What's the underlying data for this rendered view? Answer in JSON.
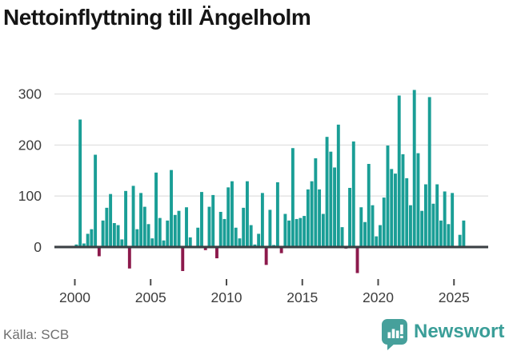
{
  "title": "Nettoinflyttning till Ängelholm",
  "source": "Källa: SCB",
  "branding": {
    "name": "Newsworthy"
  },
  "colors": {
    "positive_bar": "#1a9e96",
    "negative_bar": "#8c1a4c",
    "gridline": "#e2e2e2",
    "zero_line": "#3b4044",
    "tick_mark": "#4a4a4a",
    "tick_text": "#3d3d3d",
    "title_text": "#151515",
    "source_text": "#6f6f6f",
    "brand_teal": "#3a9e98",
    "badge_teal": "#46a09b"
  },
  "chart_data": {
    "type": "bar",
    "title": "Nettoinflyttning till Ängelholm",
    "xlabel": "",
    "ylabel": "",
    "yticks": [
      0,
      100,
      200,
      300
    ],
    "xticks": [
      2000,
      2005,
      2010,
      2015,
      2020,
      2025
    ],
    "ylim": [
      -60,
      320
    ],
    "grid": true,
    "legend": "none",
    "points": [
      [
        "2000Q1",
        5
      ],
      [
        "2000Q2",
        250
      ],
      [
        "2000Q3",
        7
      ],
      [
        "2000Q4",
        26
      ],
      [
        "2001Q1",
        35
      ],
      [
        "2001Q2",
        181
      ],
      [
        "2001Q3",
        -18
      ],
      [
        "2001Q4",
        52
      ],
      [
        "2002Q1",
        77
      ],
      [
        "2002Q2",
        104
      ],
      [
        "2002Q3",
        47
      ],
      [
        "2002Q4",
        43
      ],
      [
        "2003Q1",
        15
      ],
      [
        "2003Q2",
        110
      ],
      [
        "2003Q3",
        -42
      ],
      [
        "2003Q4",
        120
      ],
      [
        "2004Q1",
        35
      ],
      [
        "2004Q2",
        106
      ],
      [
        "2004Q3",
        79
      ],
      [
        "2004Q4",
        45
      ],
      [
        "2005Q1",
        17
      ],
      [
        "2005Q2",
        146
      ],
      [
        "2005Q3",
        57
      ],
      [
        "2005Q4",
        13
      ],
      [
        "2006Q1",
        52
      ],
      [
        "2006Q2",
        151
      ],
      [
        "2006Q3",
        63
      ],
      [
        "2006Q4",
        71
      ],
      [
        "2007Q1",
        -47
      ],
      [
        "2007Q2",
        78
      ],
      [
        "2007Q3",
        19
      ],
      [
        "2007Q4",
        0
      ],
      [
        "2008Q1",
        38
      ],
      [
        "2008Q2",
        108
      ],
      [
        "2008Q3",
        -6
      ],
      [
        "2008Q4",
        79
      ],
      [
        "2009Q1",
        102
      ],
      [
        "2009Q2",
        -22
      ],
      [
        "2009Q3",
        69
      ],
      [
        "2009Q4",
        55
      ],
      [
        "2010Q1",
        117
      ],
      [
        "2010Q2",
        129
      ],
      [
        "2010Q3",
        38
      ],
      [
        "2010Q4",
        17
      ],
      [
        "2011Q1",
        77
      ],
      [
        "2011Q2",
        129
      ],
      [
        "2011Q3",
        43
      ],
      [
        "2011Q4",
        5
      ],
      [
        "2012Q1",
        26
      ],
      [
        "2012Q2",
        106
      ],
      [
        "2012Q3",
        -35
      ],
      [
        "2012Q4",
        73
      ],
      [
        "2013Q1",
        4
      ],
      [
        "2013Q2",
        127
      ],
      [
        "2013Q3",
        -12
      ],
      [
        "2013Q4",
        65
      ],
      [
        "2014Q1",
        52
      ],
      [
        "2014Q2",
        194
      ],
      [
        "2014Q3",
        55
      ],
      [
        "2014Q4",
        57
      ],
      [
        "2015Q1",
        61
      ],
      [
        "2015Q2",
        113
      ],
      [
        "2015Q3",
        129
      ],
      [
        "2015Q4",
        174
      ],
      [
        "2016Q1",
        113
      ],
      [
        "2016Q2",
        65
      ],
      [
        "2016Q3",
        216
      ],
      [
        "2016Q4",
        187
      ],
      [
        "2017Q1",
        156
      ],
      [
        "2017Q2",
        240
      ],
      [
        "2017Q3",
        39
      ],
      [
        "2017Q4",
        -3
      ],
      [
        "2018Q1",
        116
      ],
      [
        "2018Q2",
        207
      ],
      [
        "2018Q3",
        -51
      ],
      [
        "2018Q4",
        78
      ],
      [
        "2019Q1",
        49
      ],
      [
        "2019Q2",
        163
      ],
      [
        "2019Q3",
        82
      ],
      [
        "2019Q4",
        21
      ],
      [
        "2020Q1",
        43
      ],
      [
        "2020Q2",
        97
      ],
      [
        "2020Q3",
        199
      ],
      [
        "2020Q4",
        153
      ],
      [
        "2021Q1",
        144
      ],
      [
        "2021Q2",
        297
      ],
      [
        "2021Q3",
        182
      ],
      [
        "2021Q4",
        135
      ],
      [
        "2022Q1",
        82
      ],
      [
        "2022Q2",
        308
      ],
      [
        "2022Q3",
        184
      ],
      [
        "2022Q4",
        71
      ],
      [
        "2023Q1",
        123
      ],
      [
        "2023Q2",
        294
      ],
      [
        "2023Q3",
        85
      ],
      [
        "2023Q4",
        123
      ],
      [
        "2024Q1",
        52
      ],
      [
        "2024Q2",
        109
      ],
      [
        "2024Q3",
        45
      ],
      [
        "2024Q4",
        106
      ],
      [
        "2025Q1",
        0
      ],
      [
        "2025Q2",
        24
      ],
      [
        "2025Q3",
        52
      ]
    ]
  }
}
